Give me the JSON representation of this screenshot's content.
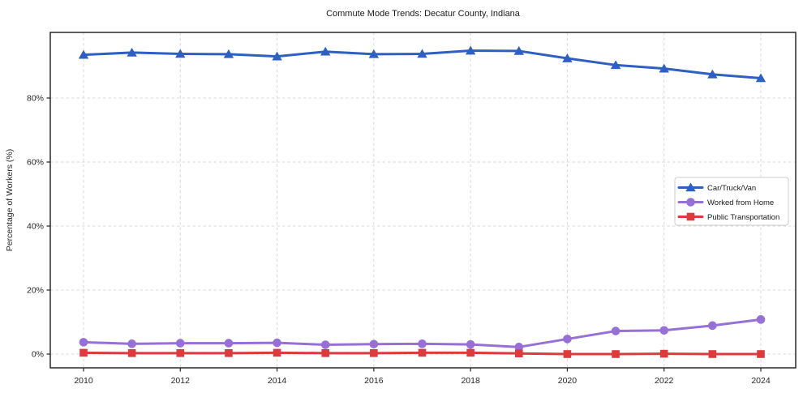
{
  "figure": {
    "background": "#ffffff",
    "plot_border_color": "#1a1a1a",
    "grid_color": "#d9d9d9"
  },
  "chart_data": {
    "type": "line",
    "title": "Commute Mode Trends: Decatur County, Indiana",
    "xlabel": "",
    "ylabel": "Percentage of Workers (%)",
    "x": [
      2010,
      2011,
      2012,
      2013,
      2014,
      2015,
      2016,
      2017,
      2018,
      2019,
      2020,
      2021,
      2022,
      2023,
      2024
    ],
    "x_ticks": [
      2010,
      2012,
      2014,
      2016,
      2018,
      2020,
      2022,
      2024
    ],
    "x_tick_labels": [
      "2010",
      "2012",
      "2014",
      "2016",
      "2018",
      "2020",
      "2022",
      "2024"
    ],
    "y_ticks": [
      0,
      20,
      40,
      60,
      80
    ],
    "y_tick_labels": [
      "0%",
      "20%",
      "40%",
      "60%",
      "80%"
    ],
    "xlim": [
      2009.31,
      2024.72
    ],
    "ylim": [
      -4.3,
      100.5
    ],
    "grid": true,
    "grid_style": "dashed",
    "legend": {
      "position": "right-center-inside",
      "entries": [
        "Car/Truck/Van",
        "Worked from Home",
        "Public Transportation"
      ]
    },
    "series": [
      {
        "name": "Car/Truck/Van",
        "color": "#2e5fc3",
        "marker": "triangle",
        "values": [
          93.5,
          94.2,
          93.8,
          93.7,
          93.0,
          94.5,
          93.7,
          93.8,
          94.8,
          94.7,
          92.4,
          90.3,
          89.2,
          87.4,
          86.2
        ]
      },
      {
        "name": "Worked from Home",
        "color": "#9670d7",
        "marker": "circle",
        "values": [
          3.7,
          3.2,
          3.4,
          3.4,
          3.5,
          2.9,
          3.1,
          3.2,
          3.0,
          2.2,
          4.7,
          7.2,
          7.4,
          8.9,
          10.8
        ]
      },
      {
        "name": "Public Transportation",
        "color": "#dc3a3c",
        "marker": "square",
        "values": [
          0.4,
          0.3,
          0.3,
          0.3,
          0.4,
          0.3,
          0.3,
          0.4,
          0.4,
          0.2,
          0.0,
          0.0,
          0.1,
          0.0,
          0.0
        ]
      }
    ]
  }
}
